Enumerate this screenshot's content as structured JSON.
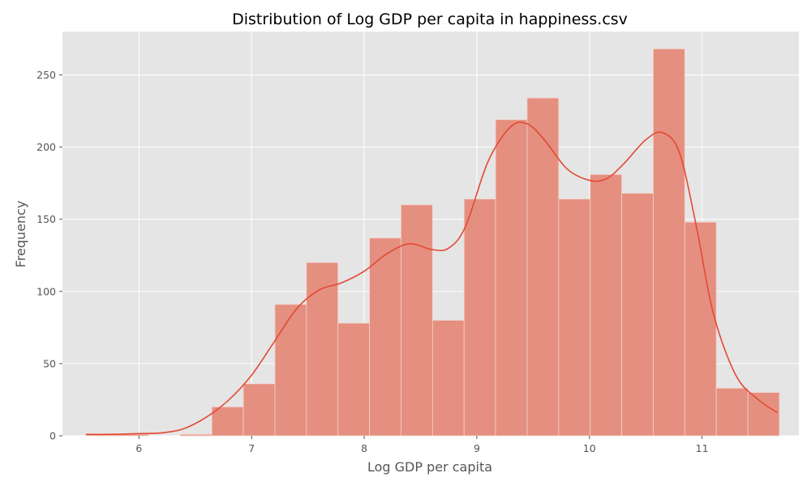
{
  "chart_data": {
    "type": "bar",
    "title": "Distribution of Log GDP per capita in happiness.csv",
    "xlabel": "Log GDP per capita",
    "ylabel": "Frequency",
    "xlim": [
      5.32,
      11.86
    ],
    "ylim": [
      0,
      280
    ],
    "xticks": [
      6,
      7,
      8,
      9,
      10,
      11
    ],
    "yticks": [
      0,
      50,
      100,
      150,
      200,
      250
    ],
    "grid": true,
    "legend": "none",
    "colors": {
      "plot_background": "#e5e5e5",
      "grid": "#ffffff",
      "bar_fill": "#e58f80",
      "bar_edge": "#f4d2cc",
      "kde_line": "#e24a33",
      "tick_text": "#555555",
      "title_text": "#000000"
    },
    "bins": [
      {
        "x0": 5.527,
        "x1": 5.807,
        "count": 1
      },
      {
        "x0": 5.807,
        "x1": 6.087,
        "count": 1
      },
      {
        "x0": 6.087,
        "x1": 6.367,
        "count": 0
      },
      {
        "x0": 6.367,
        "x1": 6.647,
        "count": 1
      },
      {
        "x0": 6.647,
        "x1": 6.927,
        "count": 20
      },
      {
        "x0": 6.927,
        "x1": 7.207,
        "count": 36
      },
      {
        "x0": 7.207,
        "x1": 7.487,
        "count": 91
      },
      {
        "x0": 7.487,
        "x1": 7.767,
        "count": 120
      },
      {
        "x0": 7.767,
        "x1": 8.047,
        "count": 78
      },
      {
        "x0": 8.047,
        "x1": 8.327,
        "count": 137
      },
      {
        "x0": 8.327,
        "x1": 8.607,
        "count": 160
      },
      {
        "x0": 8.607,
        "x1": 8.887,
        "count": 80
      },
      {
        "x0": 8.887,
        "x1": 9.167,
        "count": 164
      },
      {
        "x0": 9.167,
        "x1": 9.447,
        "count": 219
      },
      {
        "x0": 9.447,
        "x1": 9.727,
        "count": 234
      },
      {
        "x0": 9.727,
        "x1": 10.007,
        "count": 164
      },
      {
        "x0": 10.007,
        "x1": 10.287,
        "count": 181
      },
      {
        "x0": 10.287,
        "x1": 10.567,
        "count": 168
      },
      {
        "x0": 10.567,
        "x1": 10.847,
        "count": 268
      },
      {
        "x0": 10.847,
        "x1": 11.127,
        "count": 148
      },
      {
        "x0": 11.127,
        "x1": 11.407,
        "count": 33
      },
      {
        "x0": 11.407,
        "x1": 11.687,
        "count": 30
      }
    ],
    "kde": {
      "x": [
        5.53,
        5.75,
        6.0,
        6.2,
        6.4,
        6.6,
        6.8,
        7.0,
        7.2,
        7.4,
        7.6,
        7.8,
        8.0,
        8.2,
        8.4,
        8.6,
        8.75,
        8.9,
        9.1,
        9.3,
        9.45,
        9.6,
        9.8,
        10.0,
        10.15,
        10.3,
        10.5,
        10.65,
        10.8,
        10.95,
        11.1,
        11.3,
        11.5,
        11.67
      ],
      "y": [
        1,
        1,
        1.5,
        2,
        5,
        13,
        25,
        42,
        65,
        88,
        101,
        106,
        114,
        126,
        133,
        129,
        130,
        145,
        190,
        214,
        216,
        205,
        185,
        177,
        178,
        188,
        205,
        210,
        196,
        145,
        85,
        42,
        25,
        16
      ]
    }
  }
}
